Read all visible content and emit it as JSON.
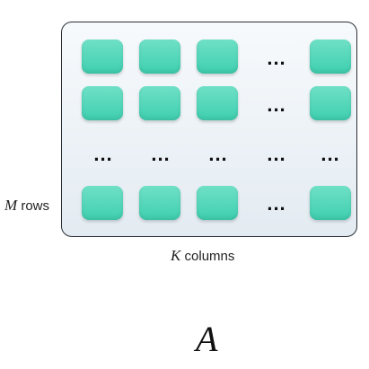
{
  "diagram": {
    "row_label": {
      "var": "M",
      "text": "rows"
    },
    "col_label": {
      "var": "K",
      "text": "columns"
    },
    "matrix_name": "A",
    "ellipsis": "...",
    "colors": {
      "cell_fill": "#3fcfb0",
      "cell_fill_light": "#6fe0c6",
      "panel_bg_top": "#f7fafc",
      "panel_bg_bottom": "#e3ebf2",
      "panel_border": "#2b2f33"
    }
  }
}
